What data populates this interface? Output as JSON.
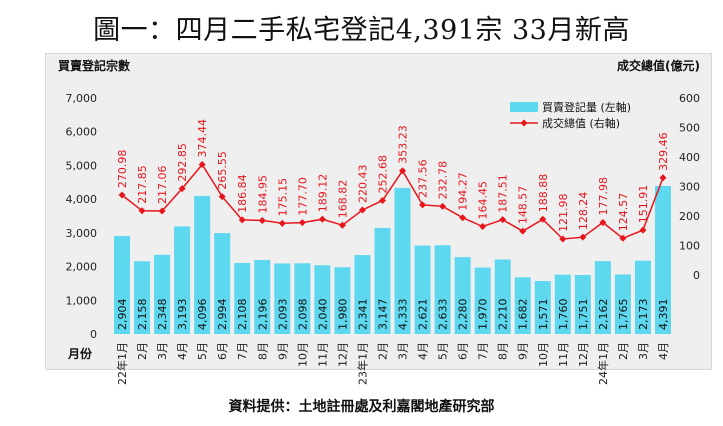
{
  "title": "圖一：四月二手私宅登記4,391宗 33月新高",
  "source": "資料提供：土地註冊處及利嘉閣地產研究部",
  "chart_data": {
    "type": "bar",
    "left_axis_label": "買賣登記宗數",
    "right_axis_label": "成交總值(億元)",
    "x_axis_label": "月份",
    "left_ticks": [
      "0",
      "1,000",
      "2,000",
      "3,000",
      "4,000",
      "5,000",
      "6,000",
      "7,000"
    ],
    "right_ticks": [
      "0",
      "100",
      "200",
      "300",
      "400",
      "500",
      "600"
    ],
    "left_ylim": [
      0,
      7000
    ],
    "right_ylim": [
      -200,
      600
    ],
    "categories": [
      "22年1月",
      "2月",
      "3月",
      "4月",
      "5月",
      "6月",
      "7月",
      "8月",
      "9月",
      "10月",
      "11月",
      "12月",
      "23年1月",
      "2月",
      "3月",
      "4月",
      "5月",
      "6月",
      "7月",
      "8月",
      "9月",
      "10月",
      "11月",
      "12月",
      "24年1月",
      "2月",
      "3月",
      "4月"
    ],
    "series": [
      {
        "name": "買賣登記量 (左軸)",
        "type": "bar",
        "axis": "left",
        "color": "#5ed8ee",
        "values": [
          2904,
          2158,
          2348,
          3193,
          4096,
          2994,
          2108,
          2196,
          2093,
          2098,
          2040,
          1980,
          2341,
          3147,
          4333,
          2621,
          2633,
          2280,
          1970,
          2210,
          1682,
          1571,
          1760,
          1751,
          2162,
          1765,
          2173,
          4391
        ],
        "labels": [
          "2,904",
          "2,158",
          "2,348",
          "3,193",
          "4,096",
          "2,994",
          "2,108",
          "2,196",
          "2,093",
          "2,098",
          "2,040",
          "1,980",
          "2,341",
          "3,147",
          "4,333",
          "2,621",
          "2,633",
          "2,280",
          "1,970",
          "2,210",
          "1,682",
          "1,571",
          "1,760",
          "1,751",
          "2,162",
          "1,765",
          "2,173",
          "4,391"
        ]
      },
      {
        "name": "成交總值 (右軸)",
        "type": "line",
        "axis": "right",
        "color": "#e8151d",
        "values": [
          270.98,
          217.85,
          217.06,
          292.85,
          374.44,
          265.55,
          186.84,
          184.95,
          175.15,
          177.7,
          189.12,
          168.82,
          220.43,
          252.68,
          353.23,
          237.56,
          232.78,
          194.27,
          164.45,
          187.51,
          148.57,
          188.88,
          121.98,
          128.24,
          177.98,
          124.57,
          151.91,
          329.46
        ],
        "labels": [
          "270.98",
          "217.85",
          "217.06",
          "292.85",
          "374.44",
          "265.55",
          "186.84",
          "184.95",
          "175.15",
          "177.70",
          "189.12",
          "168.82",
          "220.43",
          "252.68",
          "353.23",
          "237.56",
          "232.78",
          "194.27",
          "164.45",
          "187.51",
          "148.57",
          "188.88",
          "121.98",
          "128.24",
          "177.98",
          "124.57",
          "151.91",
          "329.46"
        ]
      }
    ],
    "legend_position": "top-right",
    "grid": false
  }
}
